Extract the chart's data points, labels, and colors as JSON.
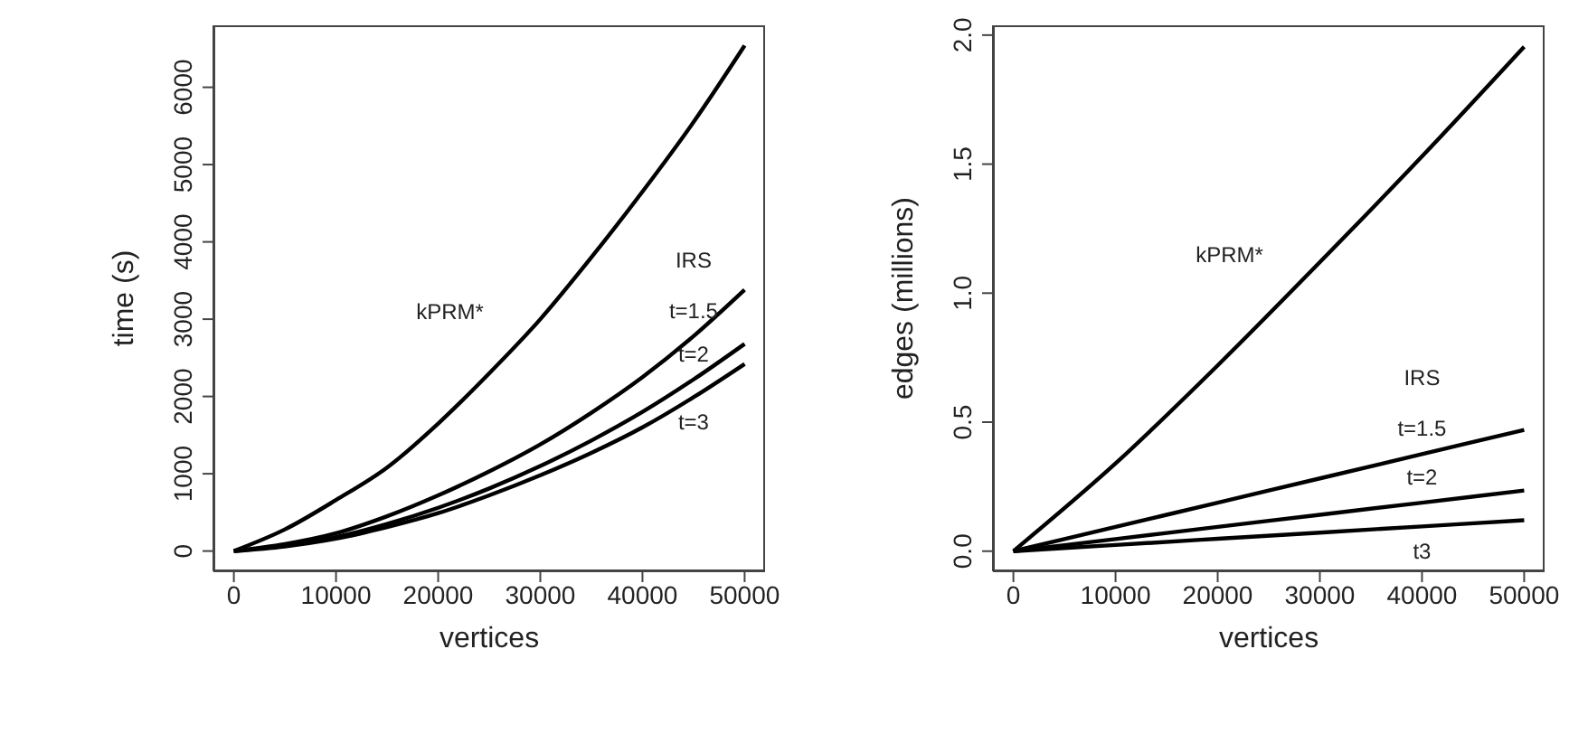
{
  "chart_data": [
    {
      "type": "line",
      "xlabel": "vertices",
      "ylabel": "time (s)",
      "xlim": [
        -2000,
        52000
      ],
      "ylim": [
        -262,
        6802
      ],
      "xticks": [
        0,
        10000,
        20000,
        30000,
        40000,
        50000
      ],
      "yticks": [
        0,
        1000,
        2000,
        3000,
        4000,
        5000,
        6000
      ],
      "grid": false,
      "legend": false,
      "marker": "none",
      "line_style": "solid",
      "x": [
        0,
        5000,
        10000,
        15000,
        20000,
        25000,
        30000,
        35000,
        40000,
        45000,
        50000
      ],
      "series": [
        {
          "name": "kPRM*",
          "color": "#000000",
          "values": [
            0,
            280,
            660,
            1080,
            1650,
            2300,
            3000,
            3800,
            4650,
            5550,
            6540
          ]
        },
        {
          "name": "t=1.5",
          "color": "#000000",
          "values": [
            0,
            90,
            230,
            450,
            720,
            1030,
            1380,
            1790,
            2250,
            2780,
            3380
          ]
        },
        {
          "name": "t=2",
          "color": "#000000",
          "values": [
            0,
            70,
            180,
            350,
            560,
            810,
            1100,
            1430,
            1800,
            2220,
            2680
          ]
        },
        {
          "name": "t=3",
          "color": "#000000",
          "values": [
            0,
            60,
            160,
            310,
            490,
            720,
            980,
            1270,
            1600,
            1990,
            2420
          ]
        }
      ],
      "annotations": [
        "IRS"
      ]
    },
    {
      "type": "line",
      "xlabel": "vertices",
      "ylabel": "edges (millions)",
      "xlim": [
        -2000,
        52000
      ],
      "ylim": [
        -0.078,
        2.038
      ],
      "xticks": [
        0,
        10000,
        20000,
        30000,
        40000,
        50000
      ],
      "yticks": [
        {
          "value": 0,
          "label": "0.0"
        },
        {
          "value": 0.5,
          "label": "0.5"
        },
        {
          "value": 1,
          "label": "1.0"
        },
        {
          "value": 1.5,
          "label": "1.5"
        },
        {
          "value": 2,
          "label": "2.0"
        }
      ],
      "grid": false,
      "legend": false,
      "marker": "none",
      "line_style": "solid",
      "x": [
        0,
        10000,
        20000,
        30000,
        40000,
        50000
      ],
      "series": [
        {
          "name": "kPRM*",
          "color": "#000000",
          "values": [
            0,
            0.34,
            0.72,
            1.12,
            1.53,
            1.955
          ]
        },
        {
          "name": "t=1.5",
          "color": "#000000",
          "values": [
            0,
            0.094,
            0.188,
            0.282,
            0.376,
            0.47
          ]
        },
        {
          "name": "t=2",
          "color": "#000000",
          "values": [
            0,
            0.047,
            0.094,
            0.141,
            0.188,
            0.235
          ]
        },
        {
          "name": "t3",
          "color": "#000000",
          "values": [
            0,
            0.024,
            0.048,
            0.072,
            0.096,
            0.12
          ]
        }
      ],
      "annotations": [
        "IRS"
      ]
    }
  ]
}
